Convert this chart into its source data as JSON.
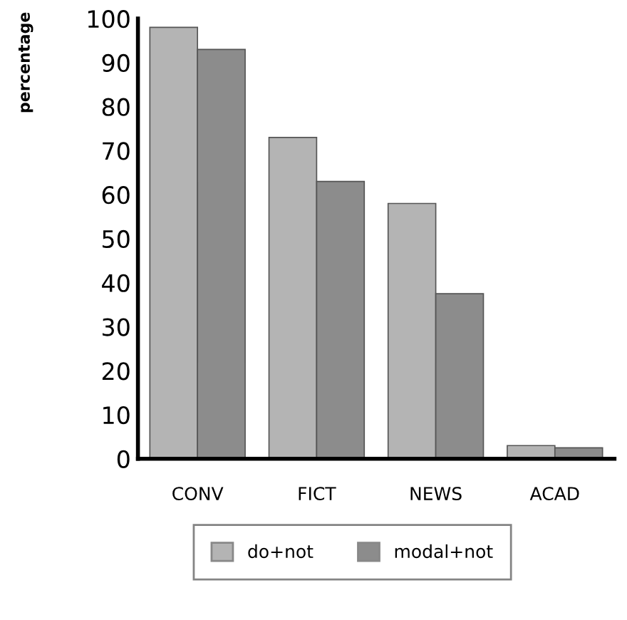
{
  "chart_data": {
    "type": "bar",
    "ylabel": "percentage",
    "categories": [
      "CONV",
      "FICT",
      "NEWS",
      "ACAD"
    ],
    "series": [
      {
        "name": "do+not",
        "color": "#b4b4b4",
        "values": [
          98,
          73,
          58,
          3
        ]
      },
      {
        "name": "modal+not",
        "color": "#8c8c8c",
        "values": [
          93,
          63,
          37.5,
          2.5
        ]
      }
    ],
    "ylim": [
      0,
      100
    ],
    "yticks": [
      0,
      10,
      20,
      30,
      40,
      50,
      60,
      70,
      80,
      90,
      100
    ],
    "legend": "bottom",
    "grid": false
  }
}
